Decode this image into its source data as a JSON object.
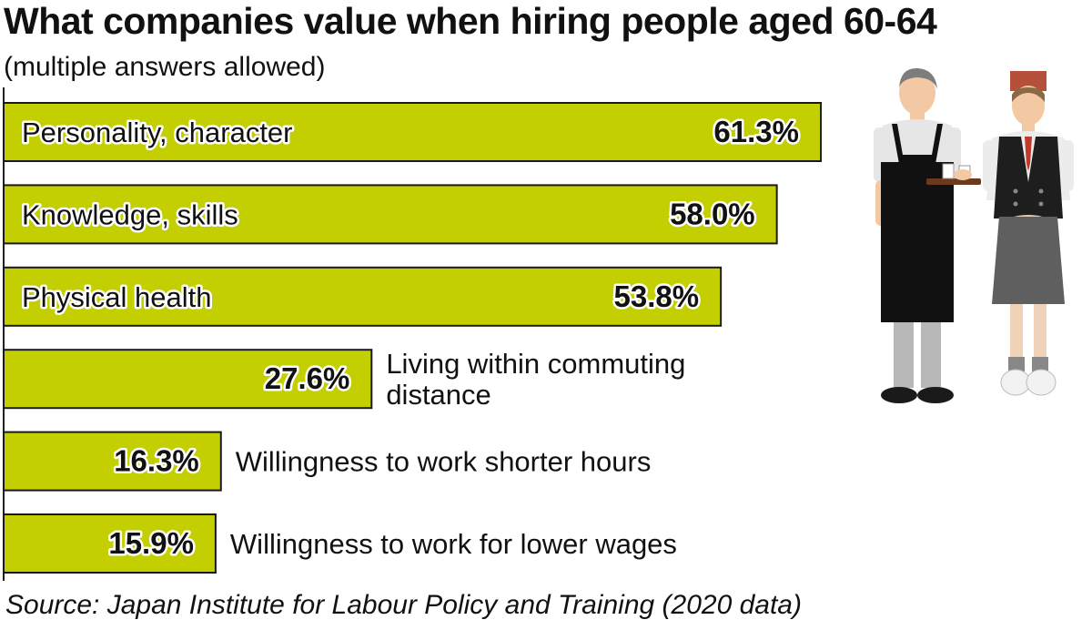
{
  "title": "What companies value when hiring people aged 60-64",
  "subtitle": "(multiple answers allowed)",
  "source": "Source: Japan Institute for Labour Policy and Training (2020 data)",
  "colors": {
    "bar_fill": "#c3cf00",
    "bar_stroke": "#1a1a1a",
    "text": "#111111",
    "text_outline": "#ffffff"
  },
  "illustration": "two-older-workers-in-aprons-serving-tea",
  "chart_data": {
    "type": "bar",
    "orientation": "horizontal",
    "title": "What companies value when hiring people aged 60-64",
    "subtitle": "(multiple answers allowed)",
    "unit": "%",
    "categories": [
      "Personality, character",
      "Knowledge, skills",
      "Physical health",
      "Living within commuting distance",
      "Willingness to work shorter hours",
      "Willingness to work for lower wages"
    ],
    "values": [
      61.3,
      58.0,
      53.8,
      27.6,
      16.3,
      15.9
    ],
    "labels": [
      "61.3%",
      "58.0%",
      "53.8%",
      "27.6%",
      "16.3%",
      "15.9%"
    ],
    "label_lines": [
      [
        "Personality, character"
      ],
      [
        "Knowledge, skills"
      ],
      [
        "Physical health"
      ],
      [
        "Living within commuting",
        "distance"
      ],
      [
        "Willingness to work shorter hours"
      ],
      [
        "Willingness to work for lower wages"
      ]
    ],
    "label_position": [
      "inside",
      "inside",
      "inside",
      "outside",
      "outside",
      "outside"
    ],
    "xlim": [
      0,
      100
    ],
    "grid": false,
    "legend": "none"
  }
}
